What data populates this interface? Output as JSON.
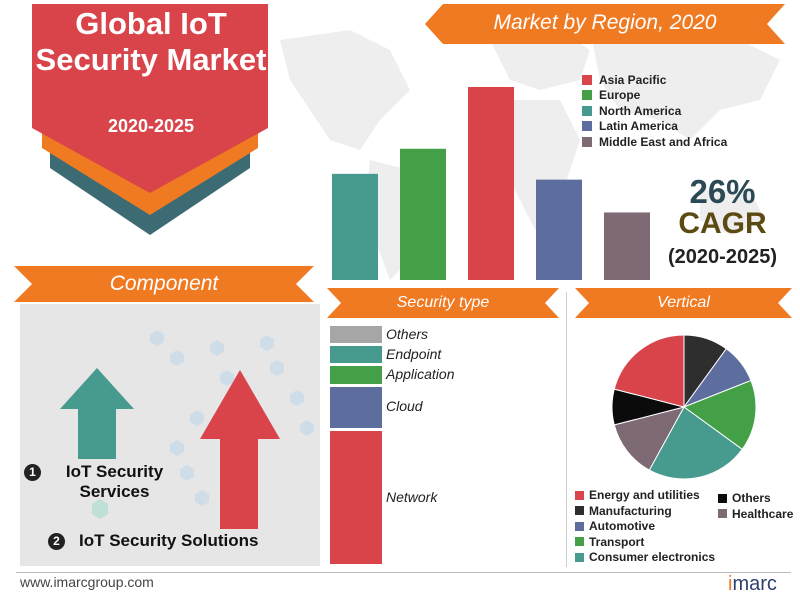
{
  "badge": {
    "title": "Global IoT Security Market",
    "years": "2020-2025"
  },
  "region_banner": "Market by Region, 2020",
  "cagr": {
    "value": "26%",
    "label": "CAGR",
    "period": "(2020-2025)"
  },
  "component": {
    "banner": "Component",
    "items": [
      {
        "number": "1",
        "label": "IoT Security Services"
      },
      {
        "number": "2",
        "label": "IoT Security Solutions"
      }
    ]
  },
  "security_banner": "Security type",
  "vertical_banner": "Vertical",
  "colors": {
    "accent_orange": "#f07a22",
    "badge_red": "#d9434a",
    "badge_teal": "#3d6b74"
  },
  "chart_data": [
    {
      "type": "bar",
      "title": "Market by Region, 2020",
      "categories": [
        "Asia Pacific",
        "Europe",
        "North America",
        "Latin America",
        "Middle East and Africa"
      ],
      "bar_order": [
        "North America",
        "Europe",
        "Asia Pacific",
        "Latin America",
        "Middle East and Africa"
      ],
      "values": {
        "Asia Pacific": 100,
        "Europe": 68,
        "North America": 55,
        "Latin America": 52,
        "Middle East and Africa": 35
      },
      "colors": {
        "Asia Pacific": "#d9434a",
        "Europe": "#43a047",
        "North America": "#479a8e",
        "Latin America": "#5d6d9e",
        "Middle East and Africa": "#7e6a74"
      },
      "ylim": [
        0,
        100
      ],
      "legend": "top-right"
    },
    {
      "type": "bar",
      "title": "Security type",
      "stacked": true,
      "categories": [
        "Others",
        "Endpoint",
        "Application",
        "Cloud",
        "Network"
      ],
      "values": [
        7,
        7,
        7,
        17,
        54
      ],
      "colors": [
        "#a6a6a6",
        "#479a8e",
        "#43a047",
        "#5d6d9e",
        "#d9434a"
      ]
    },
    {
      "type": "pie",
      "title": "Vertical",
      "categories": [
        "Manufacturing",
        "Automotive",
        "Transport",
        "Consumer electronics",
        "Healthcare",
        "Others",
        "Energy and utilities"
      ],
      "values": [
        10,
        9,
        16,
        23,
        13,
        8,
        21
      ],
      "colors": [
        "#2e2e2e",
        "#5d6d9e",
        "#43a047",
        "#479a8e",
        "#7e6a74",
        "#0b0b0b",
        "#d9434a"
      ],
      "legend_rows": [
        [
          "Energy and utilities",
          "Others"
        ],
        [
          "Manufacturing",
          "Healthcare"
        ],
        [
          "Automotive"
        ],
        [
          "Transport"
        ],
        [
          "Consumer electronics"
        ]
      ]
    }
  ],
  "footer": {
    "url": "www.imarcgroup.com",
    "logo_i": "i",
    "logo_rest": "marc"
  }
}
